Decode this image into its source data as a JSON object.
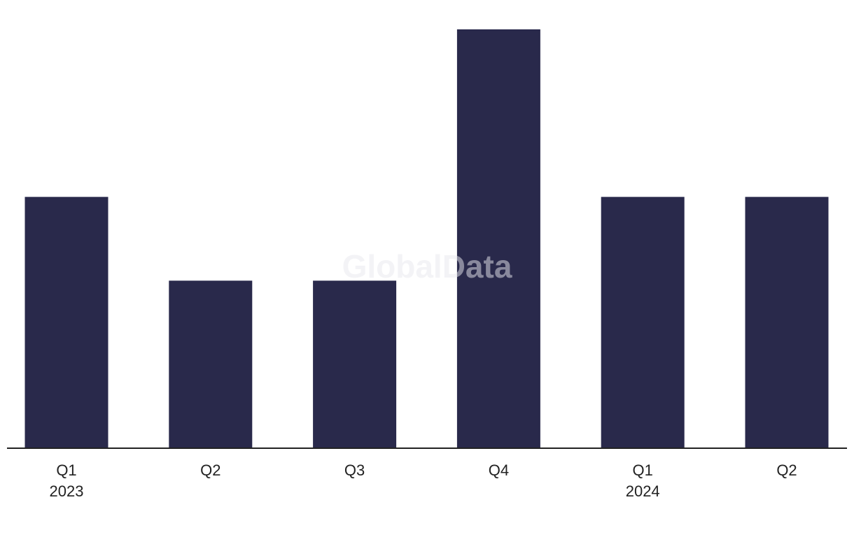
{
  "chart_data": {
    "type": "bar",
    "watermark": "GlobalData",
    "categories": [
      "Q1",
      "Q2",
      "Q3",
      "Q4",
      "Q1",
      "Q2"
    ],
    "years": [
      "2023",
      null,
      null,
      null,
      "2024",
      null
    ],
    "values": [
      3,
      2,
      2,
      5,
      3,
      3
    ],
    "color": "#29294b"
  }
}
